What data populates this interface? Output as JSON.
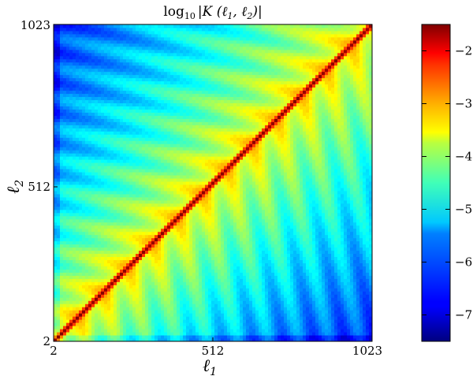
{
  "chart_data": {
    "type": "heatmap",
    "title": "log10|K(ℓ1,ℓ2)|",
    "title_parts": {
      "fn": "log",
      "base": "10",
      "body": "|K (ℓ",
      "s1": "1",
      "mid": ", ℓ",
      "s2": "2",
      "end": ")|"
    },
    "xlabel": {
      "main": "ℓ",
      "sub": "1"
    },
    "ylabel": {
      "main": "ℓ",
      "sub": "2"
    },
    "x_ticks": [
      "2",
      "512",
      "1023"
    ],
    "y_ticks": [
      "2",
      "512",
      "1023"
    ],
    "xlim": [
      2,
      1023
    ],
    "ylim": [
      2,
      1023
    ],
    "colorbar": {
      "range": [
        -7.5,
        -1.5
      ],
      "ticks": [
        "−2",
        "−3",
        "−4",
        "−5",
        "−6",
        "−7"
      ],
      "tick_values": [
        -2,
        -3,
        -4,
        -5,
        -6,
        -7
      ],
      "colormap": "jet"
    },
    "grid": false,
    "description_values": {
      "diagonal": -1.6,
      "near_diagonal": -3.5,
      "far_corner": -6.8
    }
  }
}
